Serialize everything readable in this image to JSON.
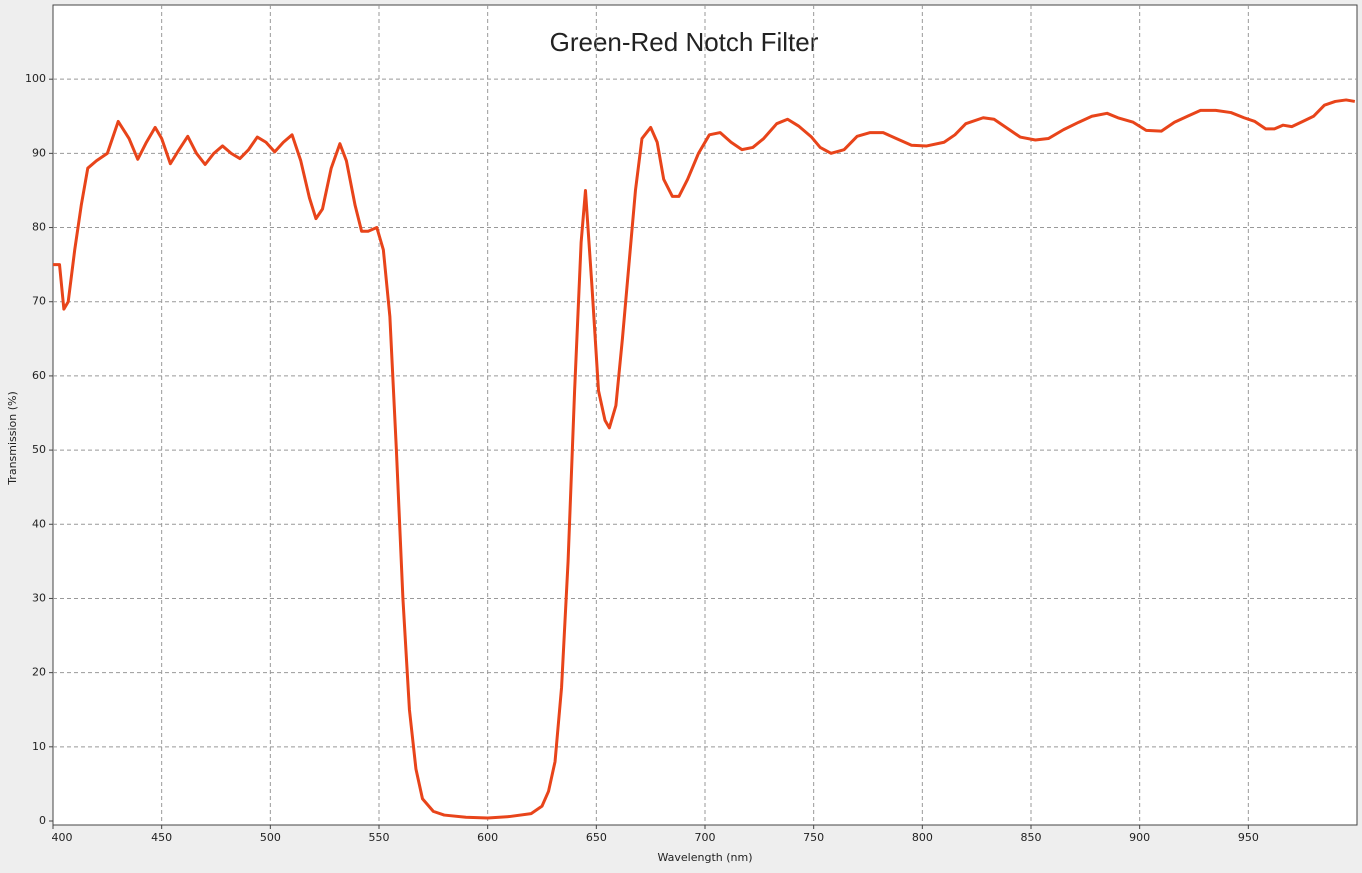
{
  "chart_data": {
    "type": "line",
    "title": "Green-Red Notch Filter",
    "x_label": "Wavelength (nm)",
    "y_label": "Transmission (%)",
    "x": [
      400,
      403,
      405,
      407,
      410,
      413,
      416,
      420,
      425,
      430,
      435,
      439,
      443,
      447,
      450,
      454,
      458,
      462,
      466,
      470,
      474,
      478,
      482,
      486,
      490,
      494,
      498,
      502,
      506,
      510,
      514,
      518,
      521,
      524,
      528,
      532,
      535,
      539,
      542,
      545,
      549,
      552,
      555,
      558,
      561,
      564,
      567,
      570,
      575,
      580,
      590,
      600,
      610,
      620,
      625,
      628,
      631,
      634,
      637,
      640,
      643,
      645,
      648,
      651,
      654,
      656,
      659,
      662,
      665,
      668,
      671,
      675,
      678,
      681,
      685,
      688,
      692,
      697,
      702,
      707,
      712,
      717,
      722,
      727,
      733,
      738,
      743,
      749,
      753,
      758,
      764,
      770,
      776,
      782,
      788,
      795,
      802,
      810,
      815,
      820,
      828,
      833,
      840,
      845,
      852,
      858,
      865,
      872,
      878,
      885,
      890,
      897,
      903,
      910,
      916,
      922,
      928,
      935,
      942,
      948,
      953,
      958,
      962,
      966,
      970,
      975,
      980,
      985,
      990,
      995,
      999
    ],
    "values": [
      75,
      75,
      69,
      70,
      77,
      83,
      88,
      89,
      90,
      94.3,
      92,
      89.2,
      91.5,
      93.5,
      92,
      88.6,
      90.5,
      92.3,
      90,
      88.5,
      90,
      91,
      90,
      89.3,
      90.5,
      92.2,
      91.5,
      90.2,
      91.5,
      92.5,
      89,
      84,
      81.2,
      82.5,
      88,
      91.3,
      89,
      83,
      79.5,
      79.5,
      80,
      77,
      68,
      50,
      30,
      15,
      7,
      3,
      1.3,
      0.8,
      0.5,
      0.4,
      0.6,
      1,
      2,
      4,
      8,
      18,
      35,
      58,
      78,
      85,
      72,
      58,
      54,
      53,
      56,
      65,
      75,
      85,
      92,
      93.5,
      91.5,
      86.5,
      84.2,
      84.2,
      86.5,
      90,
      92.5,
      92.8,
      91.5,
      90.5,
      90.8,
      92,
      94,
      94.6,
      93.7,
      92.2,
      90.8,
      90,
      90.5,
      92.3,
      92.8,
      92.8,
      92,
      91.1,
      91,
      91.5,
      92.5,
      94,
      94.8,
      94.6,
      93.2,
      92.2,
      91.8,
      92,
      93.2,
      94.2,
      95,
      95.4,
      94.8,
      94.2,
      93.1,
      93,
      94.2,
      95,
      95.8,
      95.8,
      95.5,
      94.8,
      94.3,
      93.3,
      93.3,
      93.8,
      93.6,
      94.3,
      95,
      96.5,
      97,
      97.2,
      97
    ],
    "color": "#e8441a",
    "xlim": [
      400,
      1000
    ],
    "ylim": [
      0,
      110
    ],
    "xticks": [
      400,
      450,
      500,
      550,
      600,
      650,
      700,
      750,
      800,
      850,
      900,
      950
    ],
    "yticks": [
      0,
      10,
      20,
      30,
      40,
      50,
      60,
      70,
      80,
      90,
      100
    ],
    "grid": true
  }
}
